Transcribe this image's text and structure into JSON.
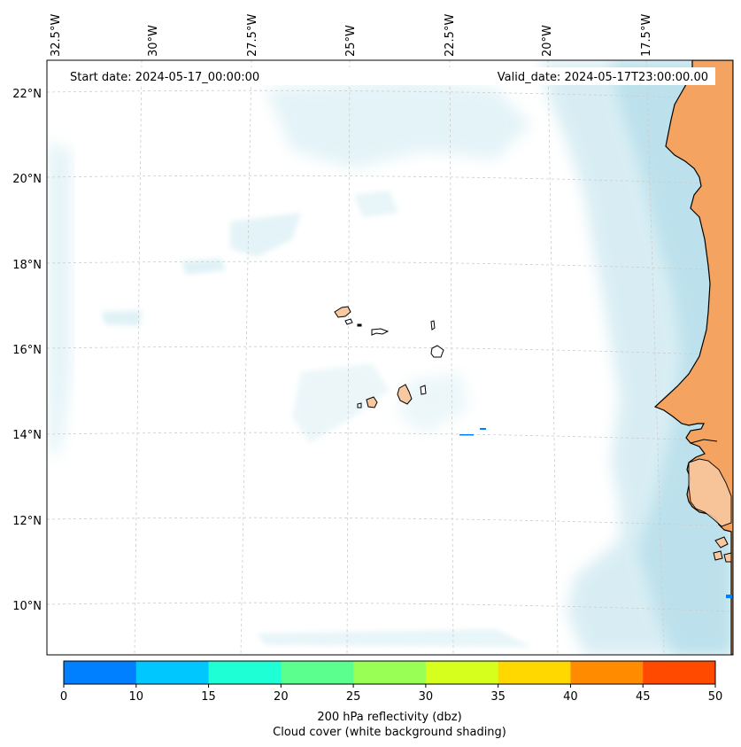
{
  "header": {
    "start_date": "Start date: 2024-05-17_00:00:00",
    "valid_date": "Valid_date: 2024-05-17T23:00:00.00"
  },
  "axes": {
    "longitude_labels": [
      "32.5°W",
      "30°W",
      "27.5°W",
      "25°W",
      "22.5°W",
      "20°W",
      "17.5°W"
    ],
    "latitude_labels": [
      "22°N",
      "20°N",
      "18°N",
      "16°N",
      "14°N",
      "12°N",
      "10°N"
    ]
  },
  "colorbar": {
    "ticks": [
      "0",
      "10",
      "15",
      "20",
      "25",
      "30",
      "35",
      "40",
      "45",
      "50"
    ],
    "colors": [
      "#0080ff",
      "#00c8ff",
      "#1effd6",
      "#5bff8e",
      "#99ff55",
      "#d6ff1e",
      "#ffd800",
      "#ff8c00",
      "#ff4a00"
    ],
    "label_line1": "200 hPa reflectivity (dbz)",
    "label_line2": "Cloud cover (white background shading)"
  },
  "colors": {
    "land": "#f4a460",
    "cloud": "#a8d8e6",
    "gridline": "#cccccc"
  }
}
